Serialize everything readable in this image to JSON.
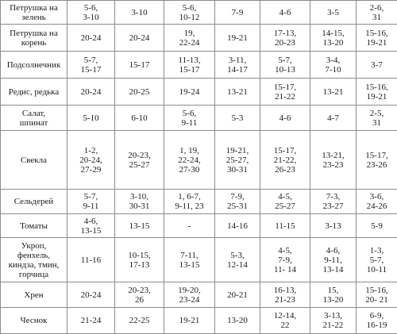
{
  "table": {
    "rows": [
      {
        "name": "Петрушка на\nзелень",
        "cells": [
          "5-6,\n3-10",
          "3-10",
          "5-6,\n10-12",
          "7-9",
          "4-6",
          "3-5",
          "2-6,\n31"
        ]
      },
      {
        "name": "Петрушка на\nкорень",
        "cells": [
          "20-24",
          "20-24",
          "19,\n22-24",
          "19-21",
          "17-13,\n20-23",
          "14-15,\n13-20",
          "15-16,\n19-21"
        ]
      },
      {
        "name": "Подсолнечник",
        "cells": [
          "5-7,\n15-17",
          "15-17",
          "11-13,\n15-17",
          "3-11,\n14-17",
          "5-7,\n10-13",
          "3-4,\n7-10",
          "3-7"
        ]
      },
      {
        "name": "Редис, редька",
        "cells": [
          "20-24",
          "20-25",
          "19-24",
          "13-21",
          "15-17,\n21-22",
          "13-21",
          "15-16,\n19-21"
        ]
      },
      {
        "name": "Салат,\nшпинат",
        "cells": [
          "5-10",
          "6-10",
          "5-6,\n9-11",
          "5-3",
          "4-6",
          "4-7",
          "2-5,\n31"
        ]
      },
      {
        "name": "Свекла",
        "cells": [
          "1-2,\n20-24,\n27-29",
          "20-23,\n25-27",
          "1, 19,\n22-24,\n27-30",
          "19-21,\n25-27,\n30-31",
          "15-17,\n21-22,\n26-23",
          "13-21,\n23-23",
          "15-17,\n23-26"
        ]
      },
      {
        "name": "Сельдерей",
        "cells": [
          "5-7,\n9-11",
          "3-10,\n30-31",
          "1, 6-7,\n9-11, 23",
          "7-9,\n25-31",
          "4-5,\n25-27",
          "7-3,\n23-27",
          "3-6,\n24-26"
        ]
      },
      {
        "name": "Томаты",
        "cells": [
          "4-6,\n13-15",
          "13-15",
          "-",
          "14-16",
          "11-15",
          "3-13",
          "5-9"
        ]
      },
      {
        "name": "Укроп,\nфенхель,\nкиндза, тмин,\nгорчица",
        "cells": [
          "11-16",
          "10-15,\n17-13",
          "7-11,\n13-15",
          "5-3,\n12-14",
          "4-5,\n7-9,\n11- 14",
          "4-6,\n9-11,\n13-14",
          "1-3,\n5-7,\n10-11"
        ]
      },
      {
        "name": "Хрен",
        "cells": [
          "20-24",
          "20-23,\n26",
          "19-20,\n23-24",
          "20-21",
          "16-13,\n21-23",
          "15,\n13-20",
          "15-16,\n20- 21"
        ]
      },
      {
        "name": "Чеснок",
        "cells": [
          "21-24",
          "22-25",
          "19-21",
          "13-20",
          "12-14,\n22",
          "3-13,\n21-22",
          "6-9,\n16-19"
        ]
      }
    ]
  }
}
